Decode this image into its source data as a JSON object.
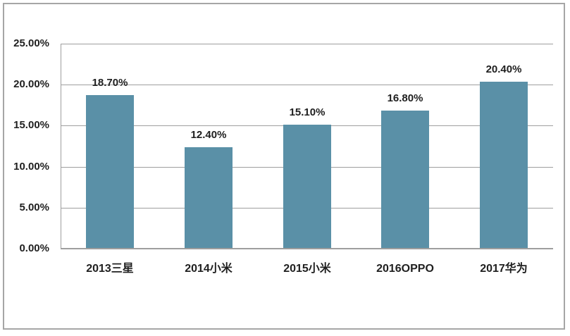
{
  "chart_data": {
    "type": "bar",
    "title": "",
    "categories": [
      "2013三星",
      "2014小米",
      "2015小米",
      "2016OPPO",
      "2017华为"
    ],
    "values": [
      18.7,
      12.4,
      15.1,
      16.8,
      20.4
    ],
    "value_labels": [
      "18.70%",
      "12.40%",
      "15.10%",
      "16.80%",
      "20.40%"
    ],
    "y_tick_values": [
      0,
      5,
      10,
      15,
      20,
      25
    ],
    "y_tick_labels": [
      "0.00%",
      "5.00%",
      "10.00%",
      "15.00%",
      "20.00%",
      "25.00%"
    ],
    "ylim": [
      0,
      25
    ],
    "xlabel": "",
    "ylabel": "",
    "grid": "horizontal",
    "legend": "none",
    "colors": {
      "bar_fill": "#5A90A7",
      "gridline": "#9E9E9E",
      "axis_line": "#9E9E9E",
      "label_text": "#1F1F1F",
      "outer_border": "#A6A6A6",
      "background": "#FFFFFF"
    }
  }
}
